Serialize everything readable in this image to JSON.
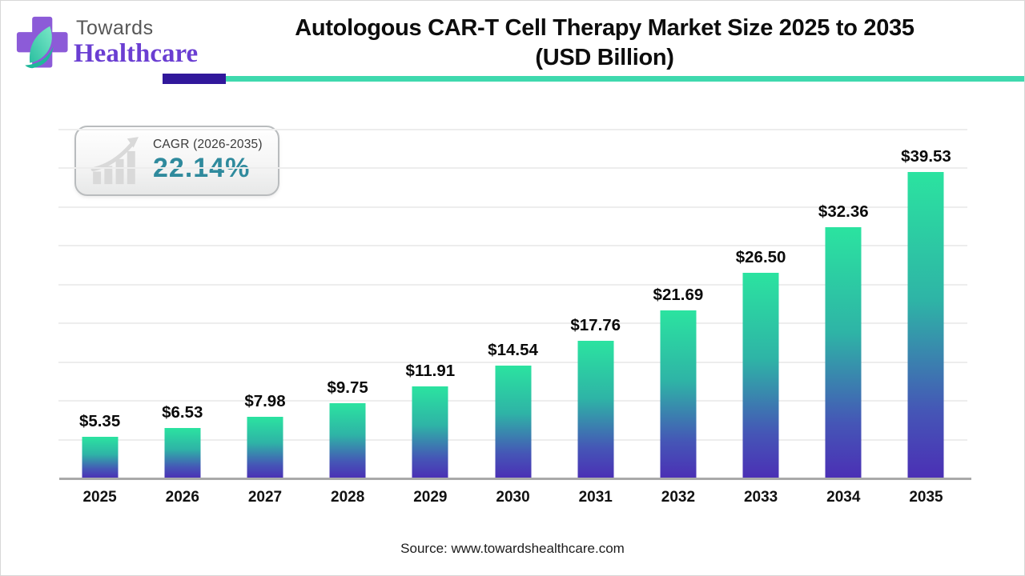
{
  "header": {
    "logo": {
      "line1": "Towards",
      "line2": "Healthcare"
    },
    "title_line1": "Autologous CAR-T Cell Therapy Market Size 2025 to 2035",
    "title_line2": "(USD Billion)"
  },
  "cagr": {
    "label": "CAGR (2026-2035)",
    "value": "22.14%"
  },
  "chart_data": {
    "type": "bar",
    "title": "Autologous CAR-T Cell Therapy Market Size 2025 to 2035 (USD Billion)",
    "categories": [
      "2025",
      "2026",
      "2027",
      "2028",
      "2029",
      "2030",
      "2031",
      "2032",
      "2033",
      "2034",
      "2035"
    ],
    "values": [
      5.35,
      6.53,
      7.98,
      9.75,
      11.91,
      14.54,
      17.76,
      21.69,
      26.5,
      32.36,
      39.53
    ],
    "value_labels": [
      "$5.35",
      "$6.53",
      "$7.98",
      "$9.75",
      "$11.91",
      "$14.54",
      "$17.76",
      "$21.69",
      "$26.50",
      "$32.36",
      "$39.53"
    ],
    "xlabel": "",
    "ylabel": "",
    "ylim": [
      0,
      45
    ],
    "gridline_step": 5,
    "grid": true,
    "legend": false
  },
  "source": {
    "text": "Source: www.towardshealthcare.com"
  },
  "colors": {
    "bar_top": "#2BE3A0",
    "bar_mid1": "#2EB4A6",
    "bar_mid2": "#4556B6",
    "bar_bottom": "#4B2FB5",
    "accent_teal": "#3FD9AE",
    "accent_purple": "#31189B",
    "cagr_value": "#2F8A9D",
    "logo_purple": "#6A3ED2",
    "cross_purple": "#8C5BD8",
    "leaf_teal": "#3ED6B5"
  }
}
